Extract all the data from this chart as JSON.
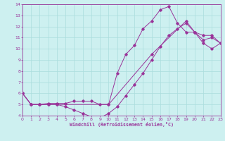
{
  "line1_x": [
    0,
    1,
    2,
    3,
    4,
    5,
    6,
    7,
    8,
    9,
    10,
    11,
    12,
    13,
    14,
    15,
    16,
    17,
    18,
    19,
    20,
    21,
    22,
    23
  ],
  "line1_y": [
    6.0,
    5.0,
    5.0,
    5.1,
    5.1,
    5.1,
    5.3,
    5.3,
    5.3,
    5.0,
    5.0,
    7.8,
    9.5,
    10.3,
    11.8,
    12.5,
    13.5,
    13.8,
    12.3,
    11.5,
    11.5,
    10.8,
    11.0,
    10.5
  ],
  "line2_x": [
    0,
    1,
    2,
    3,
    4,
    5,
    6,
    7,
    8,
    9,
    10,
    11,
    12,
    13,
    14,
    15,
    16,
    17,
    18,
    19,
    20,
    21,
    22,
    23
  ],
  "line2_y": [
    6.0,
    5.0,
    5.0,
    5.0,
    5.0,
    4.8,
    4.5,
    4.2,
    3.9,
    3.8,
    4.2,
    4.8,
    5.8,
    6.8,
    7.8,
    9.0,
    10.2,
    11.2,
    11.8,
    12.3,
    11.5,
    10.5,
    10.0,
    10.5
  ],
  "line3_x": [
    0,
    1,
    2,
    3,
    4,
    10,
    15,
    19,
    20,
    21,
    22,
    23
  ],
  "line3_y": [
    6.0,
    5.0,
    5.0,
    5.0,
    5.0,
    5.0,
    9.5,
    12.5,
    11.5,
    11.2,
    11.2,
    10.5
  ],
  "bg_color": "#cdf0f0",
  "grid_color": "#aadddd",
  "line_color": "#993399",
  "xlabel": "Windchill (Refroidissement éolien,°C)",
  "xlim": [
    0,
    23
  ],
  "ylim": [
    4,
    14
  ],
  "xticks": [
    0,
    1,
    2,
    3,
    4,
    5,
    6,
    7,
    8,
    9,
    10,
    11,
    12,
    13,
    14,
    15,
    16,
    17,
    18,
    19,
    20,
    21,
    22,
    23
  ],
  "yticks": [
    4,
    5,
    6,
    7,
    8,
    9,
    10,
    11,
    12,
    13,
    14
  ]
}
